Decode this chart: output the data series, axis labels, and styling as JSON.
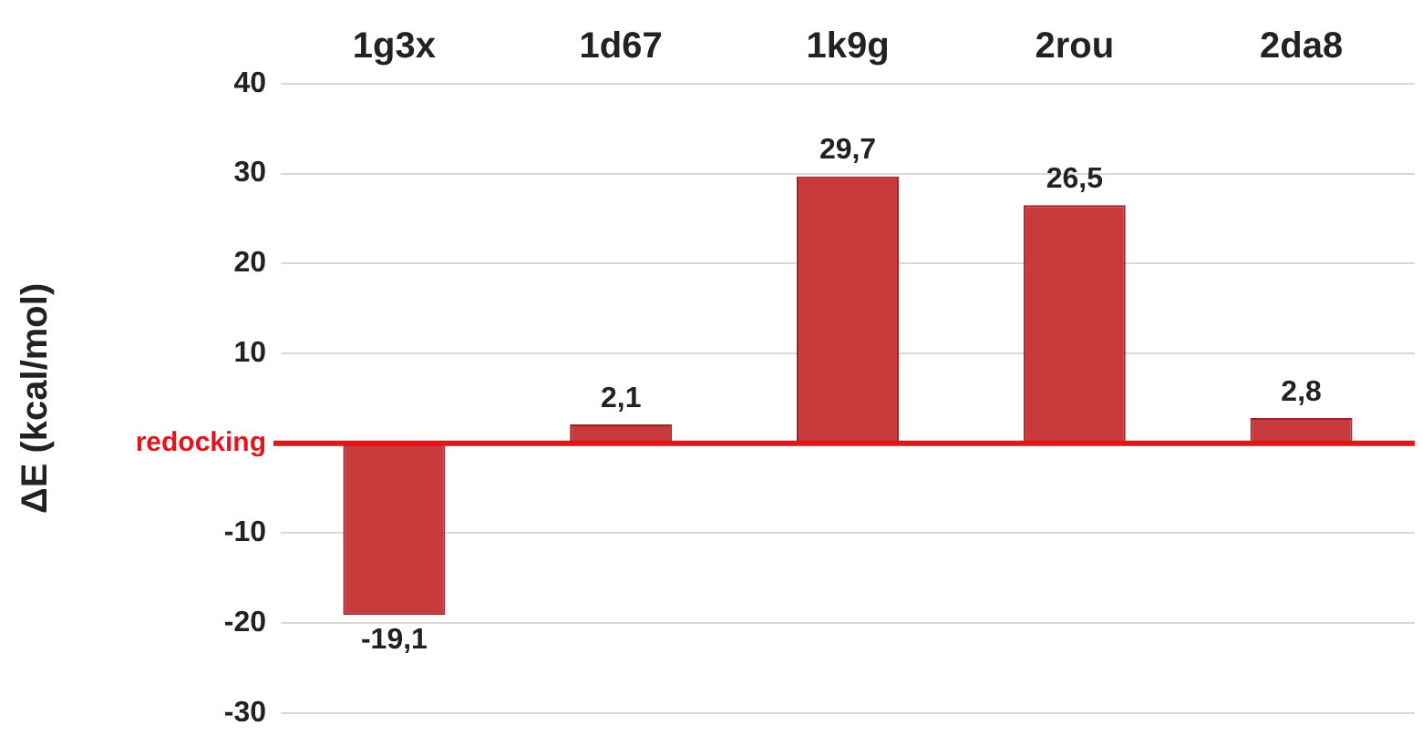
{
  "chart_data": {
    "type": "bar",
    "ylabel": "ΔE (kcal/mol)",
    "categories": [
      "1g3x",
      "1d67",
      "1k9g",
      "2rou",
      "2da8"
    ],
    "values": [
      -19.1,
      2.1,
      29.7,
      26.5,
      2.8
    ],
    "value_labels": [
      "-19,1",
      "2,1",
      "29,7",
      "26,5",
      "2,8"
    ],
    "color": "#c83a3c",
    "ylim": [
      -30,
      40
    ],
    "yticks": [
      -30,
      -20,
      -10,
      {
        "value": 0,
        "label": null
      },
      10,
      20,
      30,
      40
    ],
    "ref_lines": [
      {
        "axis": "y",
        "value": 0,
        "label": "redocking",
        "color": "#e0161c"
      }
    ],
    "grid": "y",
    "legend": false
  }
}
